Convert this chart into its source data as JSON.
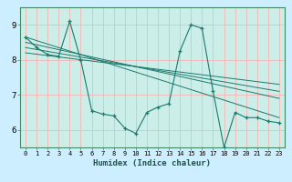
{
  "xlabel": "Humidex (Indice chaleur)",
  "bg_color": "#cceeff",
  "grid_color": "#aaddcc",
  "line_color": "#1a7a6e",
  "xlim": [
    -0.5,
    23.5
  ],
  "ylim": [
    5.5,
    9.5
  ],
  "xticks": [
    0,
    1,
    2,
    3,
    4,
    5,
    6,
    7,
    8,
    9,
    10,
    11,
    12,
    13,
    14,
    15,
    16,
    17,
    18,
    19,
    20,
    21,
    22,
    23
  ],
  "yticks": [
    6,
    7,
    8,
    9
  ],
  "series": [
    [
      0,
      8.65
    ],
    [
      1,
      8.35
    ],
    [
      2,
      8.15
    ],
    [
      3,
      8.1
    ],
    [
      4,
      9.1
    ],
    [
      5,
      8.0
    ],
    [
      6,
      6.55
    ],
    [
      7,
      6.45
    ],
    [
      8,
      6.4
    ],
    [
      9,
      6.05
    ],
    [
      10,
      5.9
    ],
    [
      11,
      6.5
    ],
    [
      12,
      6.65
    ],
    [
      13,
      6.75
    ],
    [
      14,
      8.25
    ],
    [
      15,
      9.0
    ],
    [
      16,
      8.9
    ],
    [
      17,
      7.1
    ],
    [
      18,
      5.5
    ],
    [
      19,
      6.5
    ],
    [
      20,
      6.35
    ],
    [
      21,
      6.35
    ],
    [
      22,
      6.25
    ],
    [
      23,
      6.2
    ]
  ],
  "linear_lines": [
    {
      "x0": 0,
      "y0": 8.65,
      "x1": 23,
      "y1": 6.35
    },
    {
      "x0": 0,
      "y0": 8.5,
      "x1": 23,
      "y1": 6.9
    },
    {
      "x0": 0,
      "y0": 8.35,
      "x1": 23,
      "y1": 7.1
    },
    {
      "x0": 0,
      "y0": 8.2,
      "x1": 23,
      "y1": 7.3
    }
  ]
}
